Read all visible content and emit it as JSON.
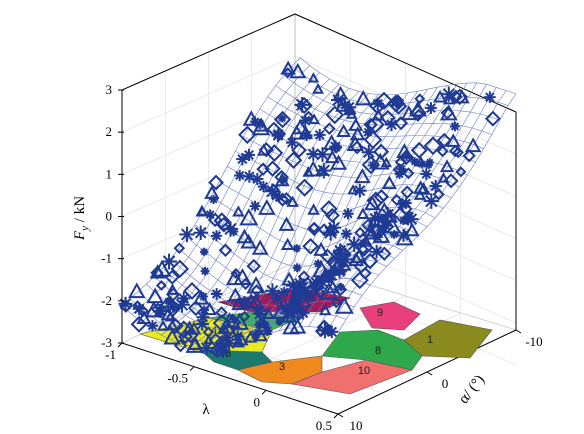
{
  "chart_data": {
    "type": "surface3d",
    "axes": {
      "z": {
        "label_symbol": "F",
        "label_subscript": "y",
        "label_unit": " / kN",
        "ticks": [
          "3",
          "2",
          "1",
          "0",
          "-1",
          "-2",
          "-3"
        ],
        "range": [
          -3,
          3
        ]
      },
      "lambda": {
        "label": "λ",
        "ticks": [
          "-1",
          "-0.5",
          "0",
          "0.5"
        ],
        "range": [
          -1,
          0.5
        ]
      },
      "alpha": {
        "label": "α/ (°)",
        "ticks": [
          "-10",
          "0",
          "10"
        ],
        "range": [
          -10,
          10
        ]
      }
    },
    "grid": true,
    "surface": {
      "style": "wireframe mesh with scattered markers",
      "color": "#1f3a93",
      "approx_z_range": [
        -2.8,
        2.6
      ]
    },
    "floor_regions": [
      {
        "label": "4",
        "color": "#e8ea22"
      },
      {
        "label": "5",
        "color": "#1a7a6e"
      },
      {
        "label": "3",
        "color": "#f08a1e"
      },
      {
        "label": "10",
        "color": "#f07070"
      },
      {
        "label": "8",
        "color": "#2ea84a"
      },
      {
        "label": "1",
        "color": "#8a8a1e"
      },
      {
        "label": "9",
        "color": "#e8407a"
      },
      {
        "label": "",
        "color": "#9e1a5a"
      },
      {
        "label": "",
        "color": "#3cb850"
      }
    ]
  }
}
